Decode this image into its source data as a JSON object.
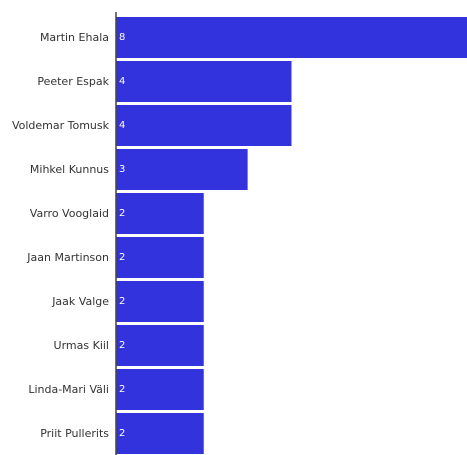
{
  "chart_data": {
    "type": "bar",
    "orientation": "horizontal",
    "title": "",
    "xlabel": "",
    "ylabel": "",
    "categories": [
      "Martin Ehala",
      "Peeter Espak",
      "Voldemar Tomusk",
      "Mihkel Kunnus",
      "Varro Vooglaid",
      "Jaan Martinson",
      "Jaak Valge",
      "Urmas Kiil",
      "Linda-Mari Väli",
      "Priit Pullerits"
    ],
    "values": [
      8,
      4,
      4,
      3,
      2,
      2,
      2,
      2,
      2,
      2
    ],
    "value_labels": [
      "8",
      "4",
      "4",
      "3",
      "2",
      "2",
      "2",
      "2",
      "2",
      "2"
    ],
    "xlim": [
      0,
      8
    ],
    "grid": false,
    "legend": "none",
    "bar_color": "#3333dd",
    "axis_color": "#444444",
    "label_color": "#333333",
    "value_label_color": "#ffffff"
  }
}
